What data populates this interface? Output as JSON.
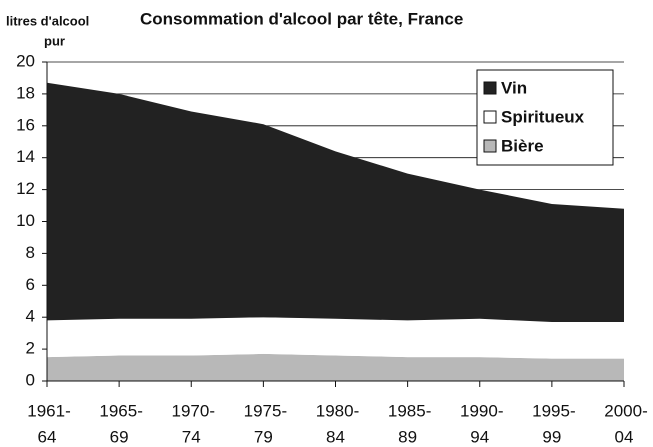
{
  "chart_data": {
    "type": "stacked_area",
    "title": "Consommation d'alcool par tête, France",
    "y_label": [
      "litres d'alcool",
      "pur"
    ],
    "categories": [
      [
        "1961-",
        "64"
      ],
      [
        "1965-",
        "69"
      ],
      [
        "1970-",
        "74"
      ],
      [
        "1975-",
        "79"
      ],
      [
        "1980-",
        "84"
      ],
      [
        "1985-",
        "89"
      ],
      [
        "1990-",
        "94"
      ],
      [
        "1995-",
        "99"
      ],
      [
        "2000-",
        "04"
      ]
    ],
    "series": [
      {
        "name": "Bière",
        "color": "#b8b8b8",
        "values": [
          1.5,
          1.6,
          1.6,
          1.7,
          1.6,
          1.5,
          1.5,
          1.4,
          1.4
        ]
      },
      {
        "name": "Spiritueux",
        "color": "#ffffff",
        "values": [
          2.3,
          2.3,
          2.3,
          2.3,
          2.3,
          2.3,
          2.4,
          2.3,
          2.3
        ]
      },
      {
        "name": "Vin",
        "color": "#222222",
        "values": [
          14.9,
          14.1,
          13.0,
          12.1,
          10.5,
          9.2,
          8.1,
          7.4,
          7.1
        ]
      }
    ],
    "ylim": [
      0,
      20
    ],
    "yticks": [
      0,
      2,
      4,
      6,
      8,
      10,
      12,
      14,
      16,
      18,
      20
    ],
    "grid": true,
    "legend": "top-right"
  }
}
